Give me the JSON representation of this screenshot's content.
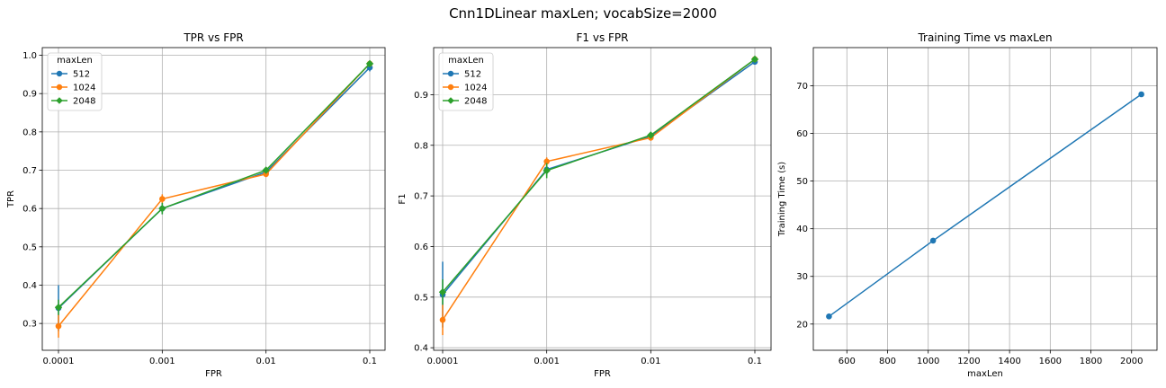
{
  "figure": {
    "title": "Cnn1DLinear maxLen; vocabSize=2000"
  },
  "chart_data": [
    {
      "type": "line",
      "title": "TPR vs FPR",
      "xlabel": "FPR",
      "ylabel": "TPR",
      "x": [
        "0.0001",
        "0.001",
        "0.01",
        "0.1"
      ],
      "yticks": [
        "0.3",
        "0.4",
        "0.5",
        "0.6",
        "0.7",
        "0.8",
        "0.9",
        "1.0"
      ],
      "ylim": [
        0.23,
        1.02
      ],
      "grid": true,
      "legend": {
        "title": "maxLen",
        "placement": "top-left"
      },
      "series": [
        {
          "name": "512",
          "color": "#1f77b4",
          "marker": "circle",
          "values": [
            0.34,
            0.6,
            0.695,
            0.968
          ],
          "err": [
            0.06,
            0.015,
            0.01,
            0.01
          ]
        },
        {
          "name": "1024",
          "color": "#ff7f0e",
          "marker": "circle",
          "values": [
            0.293,
            0.625,
            0.69,
            0.978
          ],
          "err": [
            0.03,
            0.012,
            0.008,
            0.006
          ]
        },
        {
          "name": "2048",
          "color": "#2ca02c",
          "marker": "diamond",
          "values": [
            0.342,
            0.6,
            0.7,
            0.978
          ],
          "err": [
            0.02,
            0.015,
            0.008,
            0.005
          ]
        }
      ]
    },
    {
      "type": "line",
      "title": "F1 vs FPR",
      "xlabel": "FPR",
      "ylabel": "F1",
      "x": [
        "0.0001",
        "0.001",
        "0.01",
        "0.1"
      ],
      "yticks": [
        "0.4",
        "0.5",
        "0.6",
        "0.7",
        "0.8",
        "0.9"
      ],
      "ylim": [
        0.395,
        0.993
      ],
      "grid": true,
      "legend": {
        "title": "maxLen",
        "placement": "top-left"
      },
      "series": [
        {
          "name": "512",
          "color": "#1f77b4",
          "marker": "circle",
          "values": [
            0.505,
            0.752,
            0.818,
            0.965
          ],
          "err": [
            0.065,
            0.012,
            0.006,
            0.005
          ]
        },
        {
          "name": "1024",
          "color": "#ff7f0e",
          "marker": "circle",
          "values": [
            0.455,
            0.768,
            0.815,
            0.97
          ],
          "err": [
            0.03,
            0.008,
            0.006,
            0.004
          ]
        },
        {
          "name": "2048",
          "color": "#2ca02c",
          "marker": "diamond",
          "values": [
            0.51,
            0.75,
            0.82,
            0.97
          ],
          "err": [
            0.025,
            0.015,
            0.006,
            0.004
          ]
        }
      ]
    },
    {
      "type": "line",
      "title": "Training Time vs maxLen",
      "xlabel": "maxLen",
      "ylabel": "Training Time (s)",
      "x": [
        512,
        1024,
        2048
      ],
      "xticks": [
        "600",
        "800",
        "1000",
        "1200",
        "1400",
        "1600",
        "1800",
        "2000"
      ],
      "xlim": [
        435,
        2125
      ],
      "yticks": [
        "20",
        "30",
        "40",
        "50",
        "60",
        "70"
      ],
      "ylim": [
        14.5,
        78
      ],
      "grid": true,
      "series": [
        {
          "color": "#1f77b4",
          "marker": "circle",
          "values": [
            21.6,
            37.5,
            68.2
          ]
        }
      ]
    }
  ]
}
